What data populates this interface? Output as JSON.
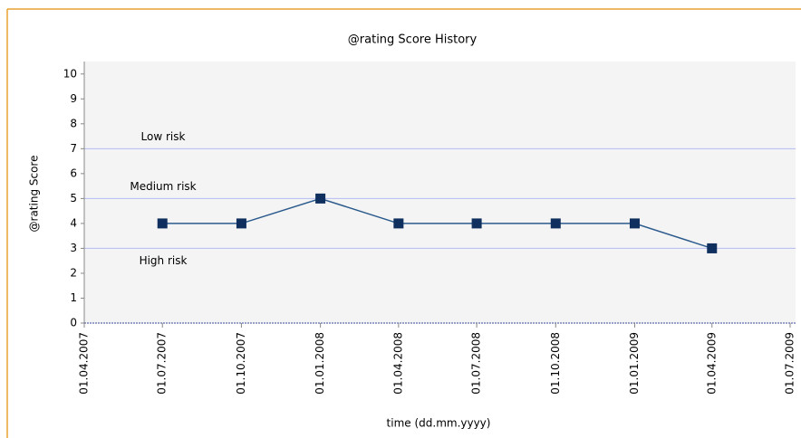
{
  "chart_data": {
    "type": "line",
    "title": "@rating Score History",
    "xlabel": "time (dd.mm.yyyy)",
    "ylabel": "@rating Score",
    "x": [
      "01.07.2007",
      "01.10.2007",
      "01.01.2008",
      "01.04.2008",
      "01.07.2008",
      "01.10.2008",
      "01.01.2009",
      "01.04.2009"
    ],
    "series": [
      {
        "name": "@rating Score",
        "color": "#2b5a8c",
        "marker_color": "#0f2f5e",
        "values": [
          4,
          4,
          5,
          4,
          4,
          4,
          4,
          3
        ]
      }
    ],
    "xlim": [
      "01.04.2007",
      "01.07.2009"
    ],
    "xticks": [
      "01.04.2007",
      "01.07.2007",
      "01.10.2007",
      "01.01.2008",
      "01.04.2008",
      "01.07.2008",
      "01.10.2008",
      "01.01.2009",
      "01.04.2009",
      "01.07.2009"
    ],
    "ylim": [
      0,
      10.5
    ],
    "yticks": [
      0,
      1,
      2,
      3,
      4,
      5,
      6,
      7,
      8,
      9,
      10
    ],
    "reference_lines": [
      {
        "value": 7,
        "label": "Low risk",
        "label_side": "above"
      },
      {
        "value": 5,
        "label": "Medium risk",
        "label_side": "above"
      },
      {
        "value": 3,
        "label": "High risk",
        "label_side": "below"
      }
    ],
    "reference_color": "#b4bcf2"
  }
}
